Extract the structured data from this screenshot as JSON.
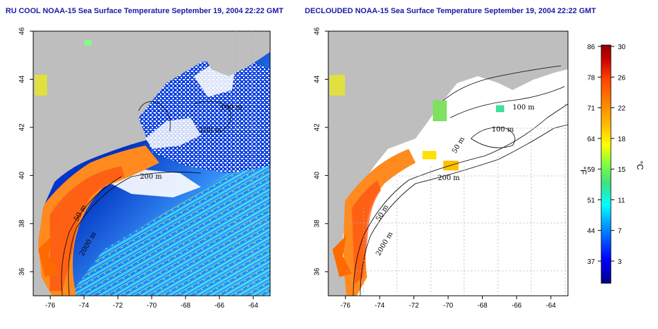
{
  "panels": [
    {
      "title": "RU COOL NOAA-15 Sea Surface Temperature September 19, 2004 22:22 GMT",
      "contour_labels": [
        "100 m",
        "100 m",
        "200 m",
        "50 m",
        "2000 m"
      ],
      "cloud_masked": false
    },
    {
      "title": "DECLOUDED NOAA-15 Sea Surface Temperature September 19, 2004 22:22 GMT",
      "contour_labels": [
        "100 m",
        "100 m",
        "50 m",
        "200 m",
        "50 m",
        "2000 m"
      ],
      "cloud_masked": true
    }
  ],
  "axes": {
    "x_ticks": [
      "-76",
      "-74",
      "-72",
      "-70",
      "-68",
      "-66",
      "-64"
    ],
    "y_ticks": [
      "46",
      "44",
      "42",
      "40",
      "38",
      "36"
    ]
  },
  "colorbar": {
    "fahrenheit_label": "°F",
    "celsius_label": "°C",
    "fahrenheit_ticks": [
      "86",
      "78",
      "71",
      "64",
      "59",
      "51",
      "44",
      "37"
    ],
    "celsius_ticks": [
      "30",
      "26",
      "22",
      "18",
      "15",
      "11",
      "7",
      "3"
    ],
    "colors": [
      "#00008b",
      "#0000ff",
      "#0080ff",
      "#00ffff",
      "#40e080",
      "#80ff40",
      "#ffff00",
      "#ffc000",
      "#ff8000",
      "#ff4000",
      "#cc0000",
      "#8b0000"
    ]
  },
  "colors": {
    "land": "#bebebe",
    "cloud": "#ffffff",
    "title": "#1a1aa6",
    "grid": "#b0b0b0"
  }
}
